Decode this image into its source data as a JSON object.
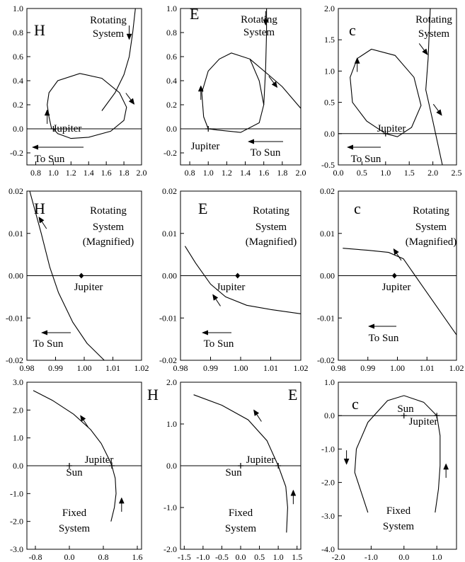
{
  "chart_data": [
    {
      "type": "line",
      "letter": "H",
      "xlim": [
        0.7,
        2.0
      ],
      "ylim": [
        -0.3,
        1.0
      ],
      "xticks": [
        "0.8",
        "1.0",
        "1.2",
        "1.4",
        "1.6",
        "1.8",
        "2.0"
      ],
      "yticks": [
        "-0.2",
        "0.0",
        "0.2",
        "0.4",
        "0.6",
        "0.8",
        "1.0"
      ],
      "labels": [
        "Rotating",
        "System"
      ],
      "jupiter_label": "Jupiter",
      "sun_label": "To Sun",
      "series": [
        {
          "points": [
            [
              0.98,
              0.0
            ],
            [
              0.95,
              0.1
            ],
            [
              0.93,
              0.2
            ],
            [
              0.95,
              0.3
            ],
            [
              1.05,
              0.4
            ],
            [
              1.3,
              0.46
            ],
            [
              1.55,
              0.42
            ],
            [
              1.75,
              0.3
            ],
            [
              1.83,
              0.18
            ],
            [
              1.8,
              0.07
            ],
            [
              1.65,
              -0.02
            ],
            [
              1.4,
              -0.07
            ],
            [
              1.2,
              -0.08
            ],
            [
              1.05,
              -0.04
            ],
            [
              1.0,
              0.0
            ]
          ]
        },
        {
          "points": [
            [
              1.55,
              0.15
            ],
            [
              1.7,
              0.3
            ],
            [
              1.8,
              0.45
            ],
            [
              1.86,
              0.6
            ],
            [
              1.9,
              0.8
            ],
            [
              1.93,
              1.0
            ]
          ]
        }
      ],
      "arrows": [
        [
          0.93,
          0.1,
          "up"
        ],
        [
          1.86,
          0.8,
          "down"
        ],
        [
          1.87,
          0.25,
          "downright"
        ]
      ]
    },
    {
      "type": "line",
      "letter": "E",
      "xlim": [
        0.7,
        2.0
      ],
      "ylim": [
        -0.3,
        1.0
      ],
      "xticks": [
        "0.8",
        "1.0",
        "1.2",
        "1.4",
        "1.6",
        "1.8",
        "2.0"
      ],
      "yticks": [
        "-0.2",
        "0.0",
        "0.2",
        "0.4",
        "0.6",
        "0.8",
        "1.0"
      ],
      "labels": [
        "Rotating",
        "System"
      ],
      "jupiter_label": "Jupiter",
      "sun_label": "To Sun",
      "series": [
        {
          "points": [
            [
              1.0,
              0.0
            ],
            [
              0.95,
              0.1
            ],
            [
              0.93,
              0.3
            ],
            [
              1.0,
              0.48
            ],
            [
              1.12,
              0.58
            ],
            [
              1.25,
              0.63
            ],
            [
              1.45,
              0.58
            ],
            [
              1.55,
              0.4
            ],
            [
              1.6,
              0.2
            ],
            [
              1.55,
              0.05
            ],
            [
              1.35,
              -0.03
            ],
            [
              1.1,
              -0.01
            ],
            [
              1.0,
              0.0
            ]
          ]
        },
        {
          "points": [
            [
              1.45,
              0.58
            ],
            [
              1.65,
              0.45
            ],
            [
              1.8,
              0.35
            ],
            [
              2.0,
              0.17
            ]
          ]
        },
        {
          "points": [
            [
              1.6,
              0.2
            ],
            [
              1.62,
              0.5
            ],
            [
              1.63,
              0.8
            ],
            [
              1.63,
              1.0
            ]
          ]
        }
      ],
      "arrows": [
        [
          0.92,
          0.3,
          "up"
        ],
        [
          1.62,
          0.92,
          "down"
        ],
        [
          1.7,
          0.39,
          "downright"
        ]
      ]
    },
    {
      "type": "line",
      "letter": "c",
      "xlim": [
        0.0,
        2.5
      ],
      "ylim": [
        -0.5,
        2.0
      ],
      "xticks": [
        "0.0",
        "0.5",
        "1.0",
        "1.5",
        "2.0",
        "2.5"
      ],
      "yticks": [
        "-0.5",
        "0.0",
        "0.5",
        "1.0",
        "1.5",
        "2.0"
      ],
      "labels": [
        "Rotating",
        "System"
      ],
      "jupiter_label": "Jupiter",
      "sun_label": "To Sun",
      "series": [
        {
          "points": [
            [
              1.0,
              0.0
            ],
            [
              0.6,
              0.2
            ],
            [
              0.3,
              0.5
            ],
            [
              0.25,
              0.9
            ],
            [
              0.4,
              1.2
            ],
            [
              0.7,
              1.35
            ],
            [
              1.2,
              1.25
            ],
            [
              1.6,
              0.9
            ],
            [
              1.75,
              0.45
            ],
            [
              1.55,
              0.1
            ],
            [
              1.25,
              -0.05
            ],
            [
              1.0,
              0.0
            ]
          ]
        },
        {
          "points": [
            [
              1.95,
              2.1
            ],
            [
              1.9,
              1.2
            ],
            [
              1.85,
              0.7
            ],
            [
              2.0,
              0.2
            ],
            [
              2.2,
              -0.5
            ]
          ]
        }
      ],
      "arrows": [
        [
          0.4,
          1.1,
          "up"
        ],
        [
          1.8,
          1.35,
          "downright"
        ],
        [
          2.1,
          0.38,
          "downright"
        ]
      ]
    },
    {
      "type": "line",
      "letter": "H",
      "xlim": [
        0.98,
        1.02
      ],
      "ylim": [
        -0.02,
        0.02
      ],
      "xticks": [
        "0.98",
        "0.99",
        "1.00",
        "1.01",
        "1.02"
      ],
      "yticks": [
        "-0.02",
        "-0.01",
        "0.00",
        "0.01",
        "0.02"
      ],
      "labels": [
        "Rotating",
        "System",
        "(Magnified)"
      ],
      "jupiter_label": "Jupiter",
      "sun_label": "To Sun",
      "series": [
        {
          "points": [
            [
              0.981,
              0.02
            ],
            [
              0.985,
              0.01
            ],
            [
              0.988,
              0.002
            ],
            [
              0.991,
              -0.004
            ],
            [
              0.996,
              -0.011
            ],
            [
              1.001,
              -0.016
            ],
            [
              1.007,
              -0.02
            ]
          ]
        }
      ],
      "arrows": [
        [
          0.9855,
          0.0125,
          "upleft"
        ]
      ]
    },
    {
      "type": "line",
      "letter": "E",
      "xlim": [
        0.98,
        1.02
      ],
      "ylim": [
        -0.02,
        0.02
      ],
      "xticks": [
        "0.98",
        "0.99",
        "1.00",
        "1.01",
        "1.02"
      ],
      "yticks": [
        "-0.02",
        "-0.01",
        "0.00",
        "0.01",
        "0.02"
      ],
      "labels": [
        "Rotating",
        "System",
        "(Magnified)"
      ],
      "jupiter_label": "Jupiter",
      "sun_label": "To Sun",
      "series": [
        {
          "points": [
            [
              0.9815,
              0.007
            ],
            [
              0.985,
              0.003
            ],
            [
              0.99,
              -0.002
            ],
            [
              0.995,
              -0.005
            ],
            [
              1.002,
              -0.007
            ],
            [
              1.01,
              -0.008
            ],
            [
              1.02,
              -0.009
            ]
          ]
        }
      ],
      "arrows": [
        [
          0.992,
          -0.0058,
          "upleft"
        ]
      ]
    },
    {
      "type": "line",
      "letter": "c",
      "xlim": [
        0.98,
        1.02
      ],
      "ylim": [
        -0.02,
        0.02
      ],
      "xticks": [
        "0.98",
        "0.99",
        "1.00",
        "1.01",
        "1.02"
      ],
      "yticks": [
        "-0.02",
        "-0.01",
        "0.00",
        "0.01",
        "0.02"
      ],
      "labels": [
        "Rotating",
        "System",
        "(Magnified)"
      ],
      "jupiter_label": "Jupiter",
      "sun_label": "To Sun",
      "series": [
        {
          "points": [
            [
              0.9815,
              0.0065
            ],
            [
              0.99,
              0.006
            ],
            [
              0.997,
              0.0055
            ],
            [
              1.002,
              0.004
            ],
            [
              1.005,
              0.001
            ],
            [
              1.008,
              -0.002
            ],
            [
              1.013,
              -0.007
            ],
            [
              1.02,
              -0.014
            ]
          ]
        }
      ],
      "arrows": [
        [
          1.0,
          0.005,
          "upleft"
        ]
      ]
    },
    {
      "type": "line",
      "letter": "H",
      "xlim": [
        -1.0,
        1.7
      ],
      "ylim": [
        -3.0,
        3.0
      ],
      "xticks": [
        "-0.8",
        "0.0",
        "0.8",
        "1.6"
      ],
      "yticks": [
        "-3.0",
        "-2.0",
        "-1.0",
        "0.0",
        "1.0",
        "2.0",
        "3.0"
      ],
      "labels": [
        "Fixed",
        "System"
      ],
      "jupiter_label": "Jupiter",
      "sun_label": "Sun",
      "series": [
        {
          "points": [
            [
              -0.85,
              2.7
            ],
            [
              -0.4,
              2.35
            ],
            [
              0.1,
              1.85
            ],
            [
              0.5,
              1.3
            ],
            [
              0.75,
              0.8
            ],
            [
              0.93,
              0.25
            ],
            [
              1.0,
              0.0
            ],
            [
              1.08,
              -0.45
            ],
            [
              1.1,
              -1.0
            ],
            [
              1.06,
              -1.5
            ],
            [
              0.98,
              -2.0
            ]
          ]
        }
      ],
      "arrows": [
        [
          0.35,
          1.6,
          "upleft"
        ],
        [
          1.23,
          -1.4,
          "up"
        ]
      ]
    },
    {
      "type": "line",
      "letter": "E",
      "xlim": [
        -1.6,
        1.6
      ],
      "ylim": [
        -2.0,
        2.0
      ],
      "xticks": [
        "-1.5",
        "-1.0",
        "-0.5",
        "0.0",
        "0.5",
        "1.0",
        "1.5"
      ],
      "yticks": [
        "-2.0",
        "-1.0",
        "0.0",
        "1.0",
        "2.0"
      ],
      "labels": [
        "Fixed",
        "System"
      ],
      "jupiter_label": "Jupiter",
      "sun_label": "Sun",
      "series": [
        {
          "points": [
            [
              -1.25,
              1.7
            ],
            [
              -0.5,
              1.45
            ],
            [
              0.2,
              1.1
            ],
            [
              0.7,
              0.6
            ],
            [
              1.0,
              0.0
            ],
            [
              1.2,
              -0.5
            ],
            [
              1.25,
              -1.0
            ],
            [
              1.22,
              -1.6
            ]
          ]
        }
      ],
      "arrows": [
        [
          0.45,
          1.2,
          "upleft"
        ],
        [
          1.4,
          -0.75,
          "up"
        ]
      ]
    },
    {
      "type": "line",
      "letter": "c",
      "xlim": [
        -2.0,
        1.6
      ],
      "ylim": [
        -4.0,
        1.0
      ],
      "xticks": [
        "-2.0",
        "-1.0",
        "0.0",
        "1.0"
      ],
      "yticks": [
        "-4.0",
        "-3.0",
        "-2.0",
        "-1.0",
        "0.0",
        "1.0"
      ],
      "labels": [
        "Fixed",
        "System"
      ],
      "jupiter_label": "Jupiter",
      "sun_label": "Sun",
      "series": [
        {
          "points": [
            [
              -1.1,
              -2.9
            ],
            [
              -1.5,
              -1.7
            ],
            [
              -1.45,
              -1.0
            ],
            [
              -1.1,
              -0.2
            ],
            [
              -0.5,
              0.45
            ],
            [
              0.0,
              0.6
            ],
            [
              0.6,
              0.4
            ],
            [
              1.0,
              0.0
            ],
            [
              1.1,
              -0.6
            ],
            [
              1.1,
              -1.5
            ],
            [
              1.05,
              -2.2
            ],
            [
              0.95,
              -2.9
            ]
          ]
        }
      ],
      "arrows": [
        [
          -1.75,
          -1.25,
          "down"
        ],
        [
          1.28,
          -1.65,
          "up"
        ]
      ]
    }
  ]
}
